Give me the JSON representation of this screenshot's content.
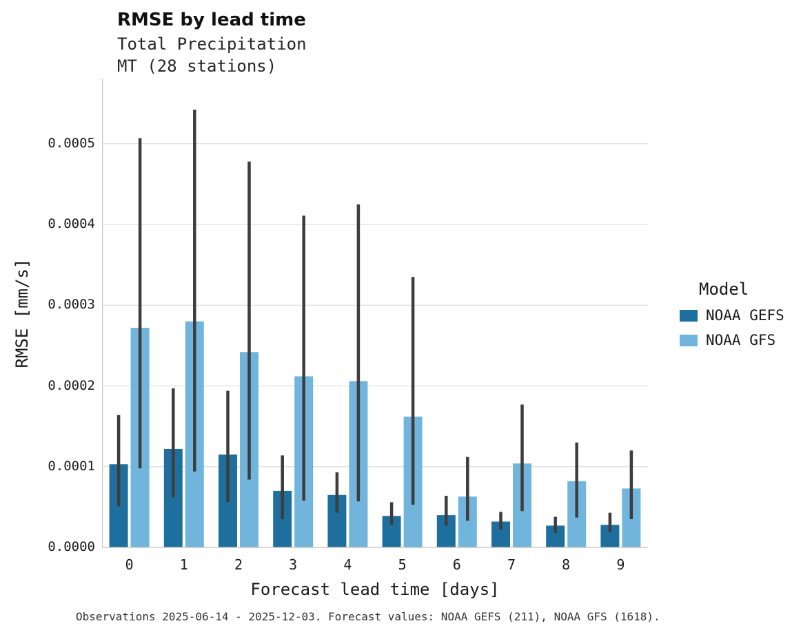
{
  "chart_data": {
    "type": "bar",
    "title": "RMSE by lead time",
    "subtitle_line1": "Total Precipitation",
    "subtitle_line2": "MT (28 stations)",
    "xlabel": "Forecast lead time [days]",
    "ylabel": "RMSE [mm/s]",
    "categories": [
      "0",
      "1",
      "2",
      "3",
      "4",
      "5",
      "6",
      "7",
      "8",
      "9"
    ],
    "ylim": [
      0,
      0.00058
    ],
    "yticks": [
      0,
      0.0001,
      0.0002,
      0.0003,
      0.0004,
      0.0005
    ],
    "ytick_labels": [
      "0.0000",
      "0.0001",
      "0.0002",
      "0.0003",
      "0.0004",
      "0.0005"
    ],
    "grid": "horizontal",
    "legend_title": "Model",
    "legend_position": "right",
    "error_bar_color": "#3d3d3d",
    "series": [
      {
        "name": "NOAA GEFS",
        "color": "#1f6f9e",
        "values": [
          0.000103,
          0.000122,
          0.000115,
          7e-05,
          6.5e-05,
          3.9e-05,
          4e-05,
          3.2e-05,
          2.7e-05,
          2.8e-05
        ],
        "err_low": [
          5.1e-05,
          6.2e-05,
          5.6e-05,
          3.5e-05,
          4.3e-05,
          2.8e-05,
          2.7e-05,
          2.2e-05,
          1.8e-05,
          1.9e-05
        ],
        "err_high": [
          0.000164,
          0.000197,
          0.000194,
          0.000114,
          9.3e-05,
          5.6e-05,
          6.4e-05,
          4.4e-05,
          3.8e-05,
          4.3e-05
        ]
      },
      {
        "name": "NOAA GFS",
        "color": "#71b4dc",
        "values": [
          0.000272,
          0.00028,
          0.000242,
          0.000212,
          0.000206,
          0.000162,
          6.3e-05,
          0.000104,
          8.2e-05,
          7.3e-05
        ],
        "err_low": [
          9.8e-05,
          9.4e-05,
          8.4e-05,
          5.8e-05,
          5.7e-05,
          5.3e-05,
          3.3e-05,
          4.5e-05,
          3.7e-05,
          3.5e-05
        ],
        "err_high": [
          0.000507,
          0.000542,
          0.000478,
          0.000411,
          0.000425,
          0.000335,
          0.000112,
          0.000177,
          0.00013,
          0.00012
        ]
      }
    ],
    "caption": "Observations 2025-06-14 - 2025-12-03. Forecast values: NOAA GEFS (211), NOAA GFS (1618)."
  }
}
